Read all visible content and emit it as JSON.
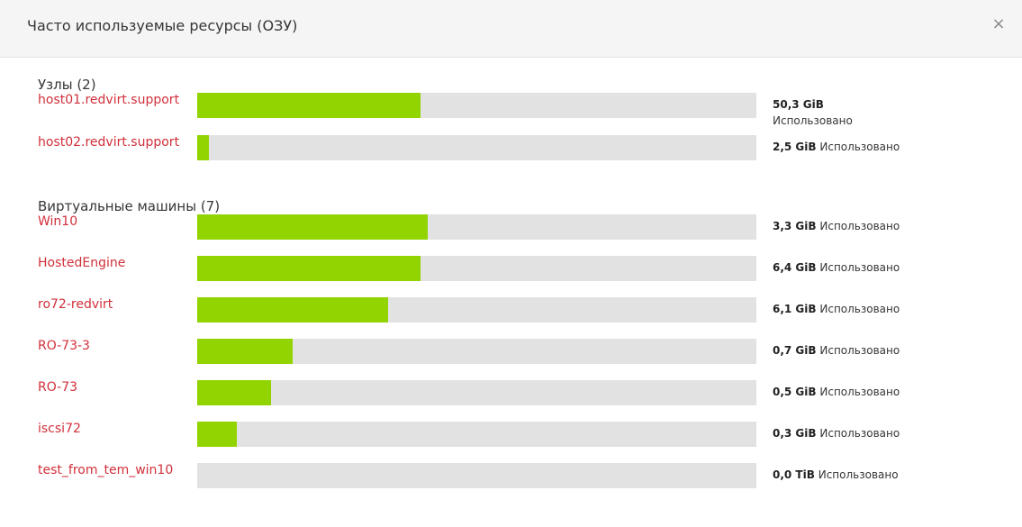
{
  "modal": {
    "title": "Часто используемые ресурсы (ОЗУ)",
    "close_label": "×"
  },
  "hosts": {
    "title": "Узлы (2)",
    "items": [
      {
        "name": "host01.redvirt.support",
        "used": "50,3 GiB",
        "suffix": "Использовано",
        "fraction": 0.4
      },
      {
        "name": "host02.redvirt.support",
        "used": "2,5 GiB",
        "suffix": "Использовано",
        "fraction": 0.021
      }
    ]
  },
  "vms": {
    "title": "Виртуальные машины (7)",
    "items": [
      {
        "name": "Win10",
        "used": "3,3 GiB",
        "suffix": "Использовано",
        "fraction": 0.412
      },
      {
        "name": "HostedEngine",
        "used": "6,4 GiB",
        "suffix": "Использовано",
        "fraction": 0.4
      },
      {
        "name": "ro72-redvirt",
        "used": "6,1 GiB",
        "suffix": "Использовано",
        "fraction": 0.341
      },
      {
        "name": "RO-73-3",
        "used": "0,7 GiB",
        "suffix": "Использовано",
        "fraction": 0.171
      },
      {
        "name": "RO-73",
        "used": "0,5 GiB",
        "suffix": "Использовано",
        "fraction": 0.132
      },
      {
        "name": "iscsi72",
        "used": "0,3 GiB",
        "suffix": "Использовано",
        "fraction": 0.071
      },
      {
        "name": "test_from_tem_win10",
        "used": "0,0 TiB",
        "suffix": "Использовано",
        "fraction": 0.0
      }
    ]
  },
  "colors": {
    "fill": "#92d400",
    "track": "#e2e2e2",
    "link": "#d1303a"
  }
}
